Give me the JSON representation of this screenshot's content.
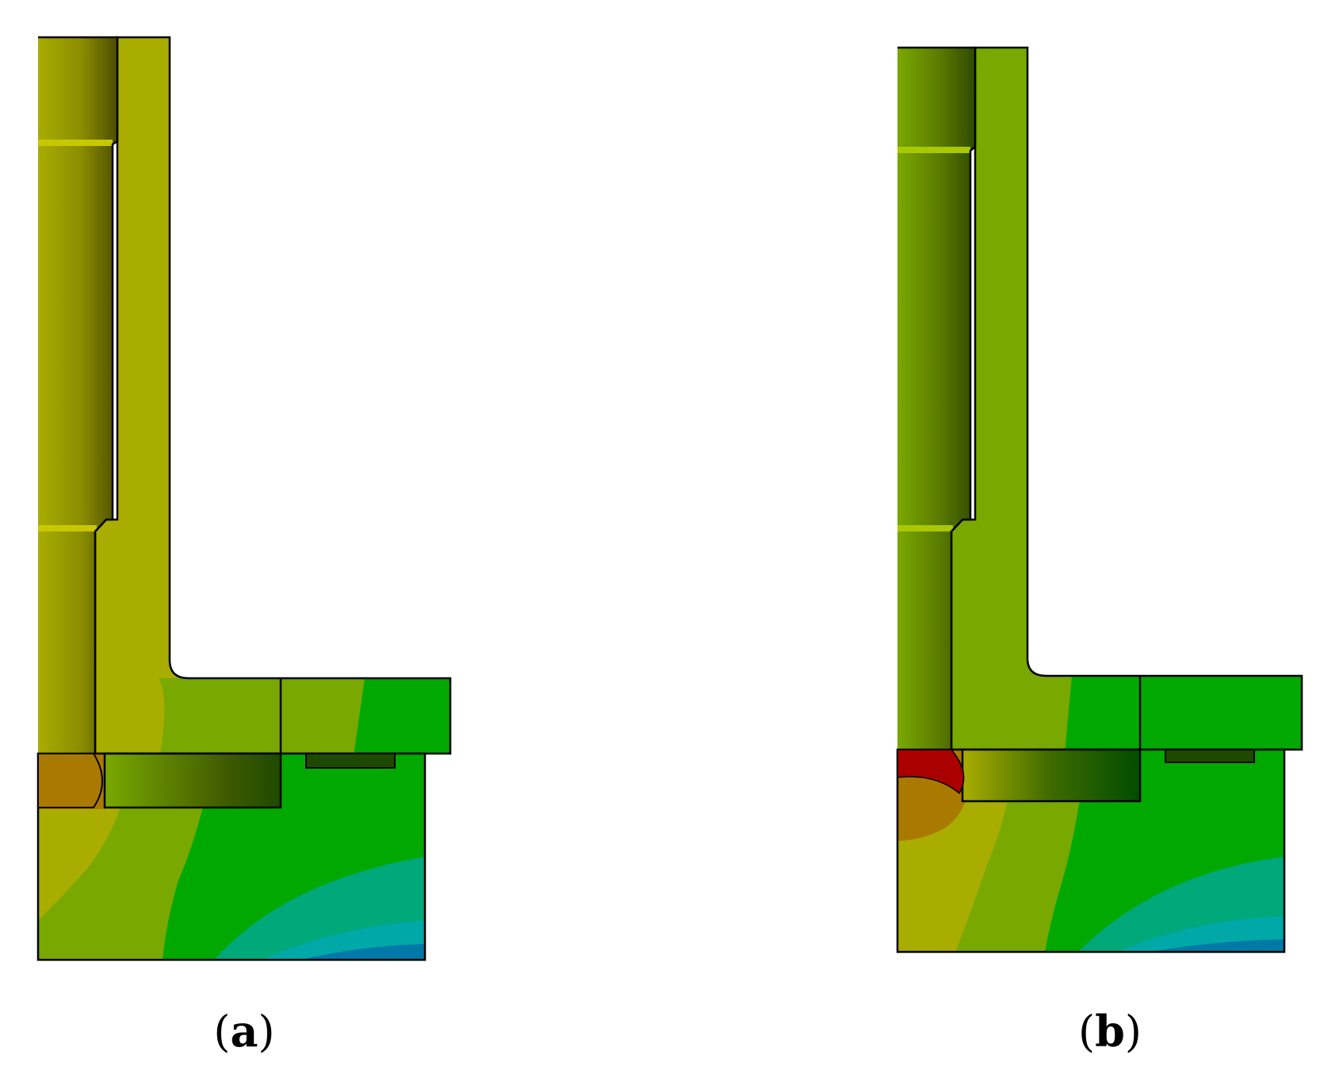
{
  "panels": [
    {
      "id": "a",
      "label": "a"
    },
    {
      "id": "b",
      "label": "b"
    }
  ],
  "colors": {
    "outline": "#000000",
    "olive": "#a9ad00",
    "yellow_green": "#79a800",
    "green": "#00a800",
    "teal": "#00a87a",
    "cyan": "#00a8a8",
    "blue": "#0079a8",
    "orange": "#aa7a00",
    "red": "#aa0000",
    "dark_green": "#004d00"
  }
}
